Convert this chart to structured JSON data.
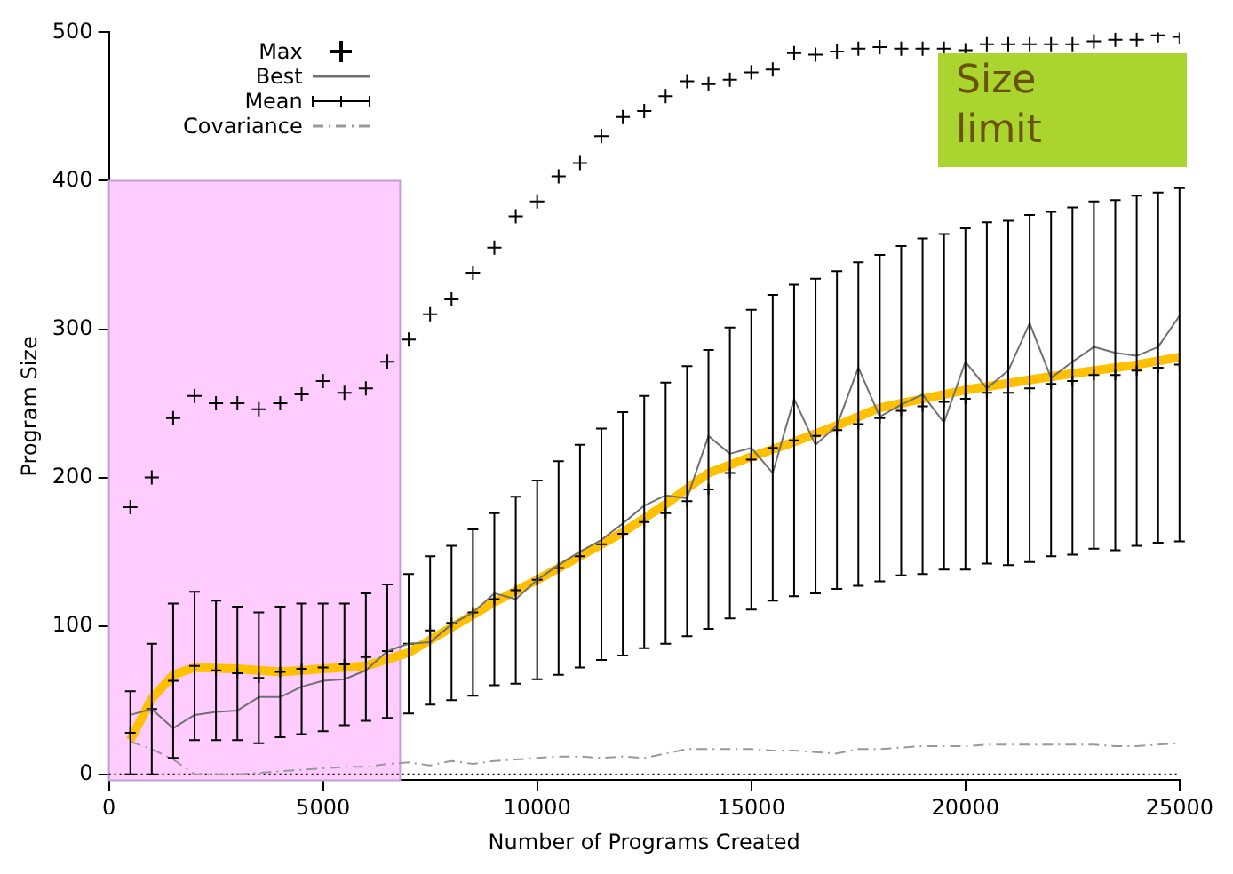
{
  "chart_data": {
    "type": "line",
    "xlabel": "Number of Programs Created",
    "ylabel": "Program Size",
    "x": [
      500,
      1000,
      1500,
      2000,
      2500,
      3000,
      3500,
      4000,
      4500,
      5000,
      5500,
      6000,
      6500,
      7000,
      7500,
      8000,
      8500,
      9000,
      9500,
      10000,
      10500,
      11000,
      11500,
      12000,
      12500,
      13000,
      13500,
      14000,
      14500,
      15000,
      15500,
      16000,
      16500,
      17000,
      17500,
      18000,
      18500,
      19000,
      19500,
      20000,
      20500,
      21000,
      21500,
      22000,
      22500,
      23000,
      23500,
      24000,
      24500,
      25000
    ],
    "series": [
      {
        "name": "Max",
        "type": "scatter",
        "marker": "cross",
        "color": "#000000",
        "values": [
          180,
          200,
          240,
          255,
          250,
          250,
          246,
          250,
          256,
          265,
          257,
          260,
          278,
          293,
          310,
          320,
          338,
          355,
          376,
          386,
          403,
          412,
          430,
          443,
          447,
          457,
          467,
          465,
          468,
          473,
          475,
          486,
          485,
          487,
          489,
          490,
          489,
          489,
          489,
          488,
          492,
          492,
          492,
          492,
          492,
          494,
          495,
          495,
          498,
          497
        ]
      },
      {
        "name": "Best",
        "marker": "none",
        "line_style": "solid",
        "color": "#707070",
        "values": [
          40,
          44,
          31,
          40,
          42,
          43,
          52,
          52,
          59,
          63,
          64,
          70,
          83,
          88,
          89,
          101,
          109,
          122,
          118,
          131,
          141,
          150,
          158,
          169,
          181,
          188,
          186,
          228,
          216,
          220,
          203,
          253,
          222,
          235,
          274,
          241,
          249,
          256,
          237,
          278,
          260,
          272,
          304,
          267,
          278,
          288,
          284,
          282,
          288,
          309
        ]
      },
      {
        "name": "Mean",
        "type": "scatter",
        "marker": "cross",
        "color": "#000000",
        "values": [
          28,
          44,
          63,
          73,
          70,
          68,
          65,
          69,
          71,
          72,
          74,
          79,
          83,
          88,
          97,
          102,
          109,
          118,
          124,
          131,
          139,
          147,
          155,
          162,
          170,
          176,
          184,
          192,
          203,
          212,
          220,
          225,
          228,
          232,
          236,
          240,
          245,
          248,
          251,
          253,
          257,
          257,
          260,
          263,
          265,
          269,
          269,
          272,
          274,
          276
        ],
        "errors": [
          28,
          44,
          52,
          50,
          47,
          45,
          44,
          44,
          44,
          43,
          41,
          43,
          45,
          47,
          50,
          52,
          56,
          58,
          63,
          67,
          72,
          75,
          78,
          82,
          85,
          88,
          91,
          94,
          98,
          101,
          103,
          105,
          106,
          107,
          109,
          110,
          111,
          113,
          113,
          115,
          115,
          116,
          117,
          116,
          117,
          117,
          118,
          118,
          118,
          119
        ]
      },
      {
        "name": "Covariance",
        "marker": "none",
        "line_style": "dashed",
        "color": "#999999",
        "values": [
          22,
          17,
          10,
          0,
          0,
          0,
          1,
          2,
          3,
          4,
          5,
          5,
          7,
          8,
          6,
          9,
          7,
          9,
          10,
          11,
          12,
          12,
          11,
          12,
          11,
          14,
          17,
          17,
          17,
          17,
          16,
          16,
          15,
          14,
          17,
          17,
          18,
          19,
          19,
          19,
          20,
          20,
          20,
          20,
          20,
          20,
          19,
          19,
          20,
          21
        ]
      },
      {
        "marker": "none",
        "line_style": "solid",
        "color": "#ffc000",
        "x": [
          500,
          1000,
          1500,
          2000,
          3000,
          4000,
          5000,
          6000,
          7000,
          8000,
          9000,
          10000,
          11000,
          12000,
          13000,
          14000,
          15000,
          16000,
          17000,
          18000,
          20000,
          22000,
          24000,
          25000
        ],
        "values": [
          23,
          51,
          67,
          72,
          71,
          69,
          71,
          73,
          82,
          99,
          116,
          131,
          147,
          163,
          182,
          203,
          214,
          224,
          235,
          247,
          259,
          268,
          276,
          281
        ]
      }
    ],
    "xlim": [
      0,
      25000
    ],
    "xticks": [
      0,
      5000,
      10000,
      15000,
      20000,
      25000
    ],
    "ylim": [
      -4,
      500
    ],
    "yticks": [
      0,
      100,
      200,
      300,
      400,
      500
    ],
    "grid": false,
    "legend": "top left",
    "bands": [
      {
        "axis": "x",
        "from": 0,
        "to": 6800,
        "color": "#ffccff"
      }
    ],
    "ref_lines": [
      {
        "axis": "y",
        "value": 0,
        "color": "#000000",
        "line_style": "dotted"
      }
    ],
    "annotations": [
      "Size limit"
    ]
  }
}
